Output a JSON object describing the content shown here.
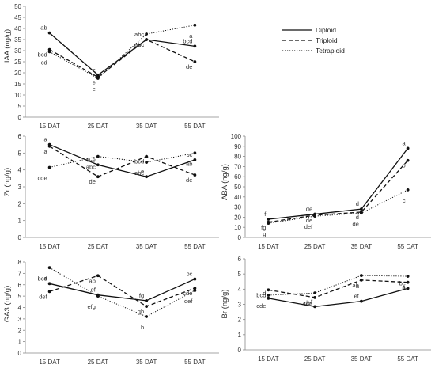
{
  "legend": {
    "entries": [
      {
        "name": "Diploid",
        "dash": "solid"
      },
      {
        "name": "Triploid",
        "dash": "dashed"
      },
      {
        "name": "Tetraploid",
        "dash": "dotted"
      }
    ],
    "placement": "top-right"
  },
  "chart_data": [
    {
      "id": "iaa",
      "type": "line",
      "ylabel": "IAA (ng/g)",
      "ylim": [
        0,
        50
      ],
      "yticks": [
        0,
        5,
        10,
        15,
        20,
        25,
        30,
        35,
        40,
        45,
        50
      ],
      "categories": [
        "15 DAT",
        "25 DAT",
        "35 DAT",
        "55 DAT"
      ],
      "series": [
        {
          "name": "Diploid",
          "values": [
            38,
            19,
            35,
            32
          ],
          "labels": [
            "ab",
            "e",
            "abc",
            "bcd"
          ]
        },
        {
          "name": "Triploid",
          "values": [
            30.5,
            18,
            35,
            25
          ],
          "labels": [
            "bcd",
            "e",
            "abc",
            "de"
          ]
        },
        {
          "name": "Tetraploid",
          "values": [
            29.5,
            17.5,
            37.5,
            41.5
          ],
          "labels": [
            "cd",
            "e",
            "abc",
            "a"
          ]
        }
      ]
    },
    {
      "id": "zr",
      "type": "line",
      "ylabel": "Zr (ng/g)",
      "ylim": [
        0,
        6
      ],
      "yticks": [
        0,
        1,
        2,
        3,
        4,
        5,
        6
      ],
      "categories": [
        "15 DAT",
        "25 DAT",
        "35 DAT",
        "55 DAT"
      ],
      "series": [
        {
          "name": "Diploid",
          "values": [
            5.5,
            4.3,
            3.6,
            4.6
          ],
          "labels": [
            "a",
            "b-e",
            "e",
            "bc"
          ]
        },
        {
          "name": "Triploid",
          "values": [
            5.4,
            3.6,
            4.8,
            3.7
          ],
          "labels": [
            "a",
            "de",
            "bcd",
            "de"
          ]
        },
        {
          "name": "Tetraploid",
          "values": [
            4.15,
            4.8,
            4.45,
            5.0
          ],
          "labels": [
            "cde",
            "abc",
            "abc",
            "ab"
          ]
        }
      ]
    },
    {
      "id": "aba",
      "type": "line",
      "ylabel": "ABA (ng/g)",
      "ylim": [
        0,
        100
      ],
      "yticks": [
        0,
        10,
        20,
        30,
        40,
        50,
        60,
        70,
        80,
        90,
        100
      ],
      "categories": [
        "15 DAT",
        "25 DAT",
        "35 DAT",
        "55 DAT"
      ],
      "series": [
        {
          "name": "Diploid",
          "values": [
            18,
            23,
            28,
            88
          ],
          "labels": [
            "f",
            "de",
            "d",
            "a"
          ]
        },
        {
          "name": "Triploid",
          "values": [
            15,
            22,
            25,
            76
          ],
          "labels": [
            "fg",
            "de",
            "d",
            "b"
          ]
        },
        {
          "name": "Tetraploid",
          "values": [
            14,
            21,
            24,
            47
          ],
          "labels": [
            "g",
            "def",
            "de",
            "c"
          ]
        }
      ]
    },
    {
      "id": "ga3",
      "type": "line",
      "ylabel": "GA3 (ng/g)",
      "ylim": [
        0,
        8
      ],
      "yticks": [
        0,
        1,
        2,
        3,
        4,
        5,
        6,
        7,
        8
      ],
      "categories": [
        "15 DAT",
        "25 DAT",
        "35 DAT",
        "55 DAT"
      ],
      "series": [
        {
          "name": "Diploid",
          "values": [
            6.1,
            5.1,
            4.6,
            6.5
          ],
          "labels": [
            "bcd",
            "ef",
            "fg",
            "bc"
          ]
        },
        {
          "name": "Triploid",
          "values": [
            5.4,
            6.8,
            4.1,
            5.7
          ],
          "labels": [
            "def",
            "ab",
            "gh",
            "cde"
          ]
        },
        {
          "name": "Tetraploid",
          "values": [
            7.5,
            5.0,
            3.2,
            5.5
          ],
          "labels": [
            "a",
            "efg",
            "h",
            "def"
          ]
        }
      ]
    },
    {
      "id": "br",
      "type": "line",
      "ylabel": "Br (ng/g)",
      "ylim": [
        0,
        6
      ],
      "yticks": [
        0,
        1,
        2,
        3,
        4,
        5,
        6
      ],
      "categories": [
        "15 DAT",
        "25 DAT",
        "35 DAT",
        "55 DAT"
      ],
      "series": [
        {
          "name": "Diploid",
          "values": [
            3.4,
            2.85,
            3.2,
            4.05
          ],
          "labels": [
            "d",
            "f",
            "ef",
            "bc"
          ]
        },
        {
          "name": "Triploid",
          "values": [
            3.95,
            3.45,
            4.6,
            4.45
          ],
          "labels": [
            "bcd",
            "def",
            "ab",
            "a"
          ]
        },
        {
          "name": "Tetraploid",
          "values": [
            3.6,
            3.75,
            4.9,
            4.85
          ],
          "labels": [
            "cde",
            "cde",
            "a",
            "a"
          ]
        }
      ]
    }
  ]
}
